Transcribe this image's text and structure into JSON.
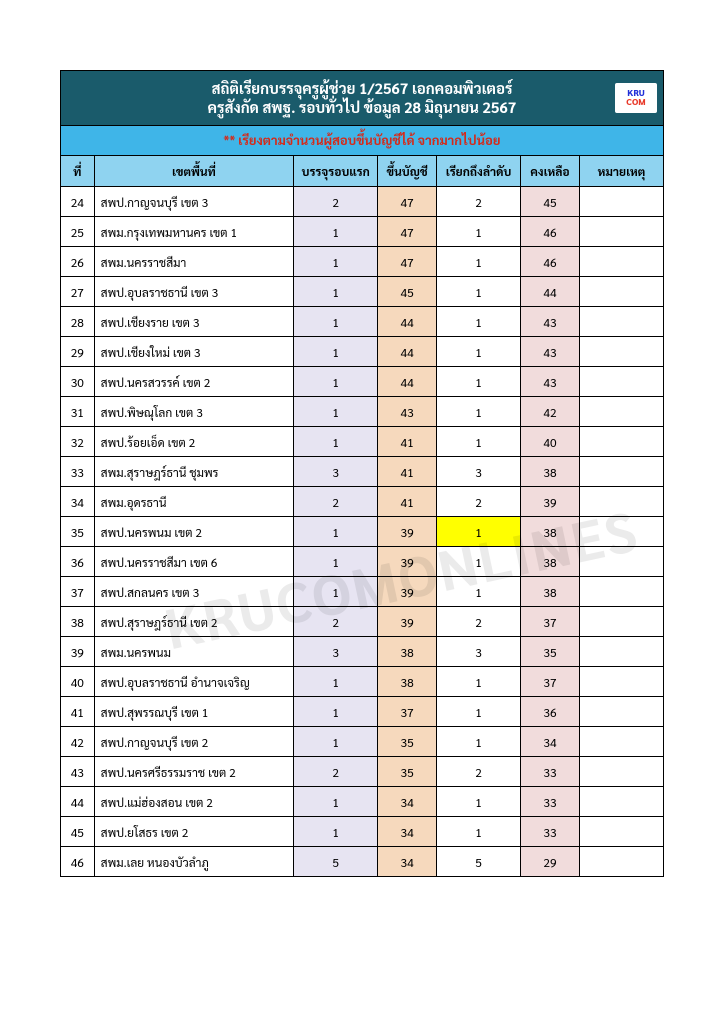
{
  "title_line1": "สถิติเรียกบรรจุครูผู้ช่วย 1/2567 เอกคอมพิวเตอร์",
  "title_line2": "ครูสังกัด สพฐ. รอบทั่วไป ข้อมูล 28 มิถุนายน 2567",
  "logo_top": "KRU",
  "logo_bot": "COM",
  "subheader": "** เรียงตามจำนวนผู้สอบขึ้นบัญชีได้ จากมากไปน้อย",
  "watermark": "KRUCOMONLINES",
  "columns": [
    "ที่",
    "เขตพื้นที่",
    "บรรจุรอบแรก",
    "ขึ้นบัญชี",
    "เรียกถึงลำดับ",
    "คงเหลือ",
    "หมายเหตุ"
  ],
  "colors": {
    "title_bg": "#1a5b6b",
    "title_fg": "#ffffff",
    "sub_bg": "#3fb5e8",
    "sub_fg": "#d42a1a",
    "head_bg": "#8fd3f0",
    "c3_bg": "#e7e4f2",
    "c4_bg": "#f6d9bd",
    "c6_bg": "#f1dcdc",
    "highlight_bg": "#ffff00",
    "border": "#000000",
    "watermark": "rgba(0,0,0,0.08)"
  },
  "rows": [
    {
      "no": "24",
      "area": "สพป.กาญจนบุรี เขต 3",
      "c3": "2",
      "c4": "47",
      "c5": "2",
      "c6": "45",
      "c7": ""
    },
    {
      "no": "25",
      "area": "สพม.กรุงเทพมหานคร เขต 1",
      "c3": "1",
      "c4": "47",
      "c5": "1",
      "c6": "46",
      "c7": ""
    },
    {
      "no": "26",
      "area": "สพม.นครราชสีมา",
      "c3": "1",
      "c4": "47",
      "c5": "1",
      "c6": "46",
      "c7": ""
    },
    {
      "no": "27",
      "area": "สพป.อุบลราชธานี เขต 3",
      "c3": "1",
      "c4": "45",
      "c5": "1",
      "c6": "44",
      "c7": ""
    },
    {
      "no": "28",
      "area": "สพป.เชียงราย เขต 3",
      "c3": "1",
      "c4": "44",
      "c5": "1",
      "c6": "43",
      "c7": ""
    },
    {
      "no": "29",
      "area": "สพป.เชียงใหม่ เขต 3",
      "c3": "1",
      "c4": "44",
      "c5": "1",
      "c6": "43",
      "c7": ""
    },
    {
      "no": "30",
      "area": "สพป.นครสวรรค์ เขต 2",
      "c3": "1",
      "c4": "44",
      "c5": "1",
      "c6": "43",
      "c7": ""
    },
    {
      "no": "31",
      "area": "สพป.พิษณุโลก เขต 3",
      "c3": "1",
      "c4": "43",
      "c5": "1",
      "c6": "42",
      "c7": ""
    },
    {
      "no": "32",
      "area": "สพป.ร้อยเอ็ด เขต 2",
      "c3": "1",
      "c4": "41",
      "c5": "1",
      "c6": "40",
      "c7": ""
    },
    {
      "no": "33",
      "area": "สพม.สุราษฎร์ธานี ชุมพร",
      "c3": "3",
      "c4": "41",
      "c5": "3",
      "c6": "38",
      "c7": ""
    },
    {
      "no": "34",
      "area": "สพม.อุดรธานี",
      "c3": "2",
      "c4": "41",
      "c5": "2",
      "c6": "39",
      "c7": ""
    },
    {
      "no": "35",
      "area": "สพป.นครพนม เขต 2",
      "c3": "1",
      "c4": "39",
      "c5": "1",
      "c6": "38",
      "c7": "",
      "hl_c5": true
    },
    {
      "no": "36",
      "area": "สพป.นครราชสีมา เขต 6",
      "c3": "1",
      "c4": "39",
      "c5": "1",
      "c6": "38",
      "c7": ""
    },
    {
      "no": "37",
      "area": "สพป.สกลนคร เขต 3",
      "c3": "1",
      "c4": "39",
      "c5": "1",
      "c6": "38",
      "c7": ""
    },
    {
      "no": "38",
      "area": "สพป.สุราษฎร์ธานี เขต 2",
      "c3": "2",
      "c4": "39",
      "c5": "2",
      "c6": "37",
      "c7": ""
    },
    {
      "no": "39",
      "area": "สพม.นครพนม",
      "c3": "3",
      "c4": "38",
      "c5": "3",
      "c6": "35",
      "c7": ""
    },
    {
      "no": "40",
      "area": "สพป.อุบลราชธานี อำนาจเจริญ",
      "c3": "1",
      "c4": "38",
      "c5": "1",
      "c6": "37",
      "c7": ""
    },
    {
      "no": "41",
      "area": "สพป.สุพรรณบุรี เขต 1",
      "c3": "1",
      "c4": "37",
      "c5": "1",
      "c6": "36",
      "c7": ""
    },
    {
      "no": "42",
      "area": "สพป.กาญจนบุรี เขต 2",
      "c3": "1",
      "c4": "35",
      "c5": "1",
      "c6": "34",
      "c7": ""
    },
    {
      "no": "43",
      "area": "สพป.นครศรีธรรมราช เขต 2",
      "c3": "2",
      "c4": "35",
      "c5": "2",
      "c6": "33",
      "c7": ""
    },
    {
      "no": "44",
      "area": "สพป.แม่ฮ่องสอน เขต 2",
      "c3": "1",
      "c4": "34",
      "c5": "1",
      "c6": "33",
      "c7": ""
    },
    {
      "no": "45",
      "area": "สพป.ยโสธร เขต 2",
      "c3": "1",
      "c4": "34",
      "c5": "1",
      "c6": "33",
      "c7": ""
    },
    {
      "no": "46",
      "area": "สพม.เลย หนองบัวลำภู",
      "c3": "5",
      "c4": "34",
      "c5": "5",
      "c6": "29",
      "c7": ""
    }
  ]
}
